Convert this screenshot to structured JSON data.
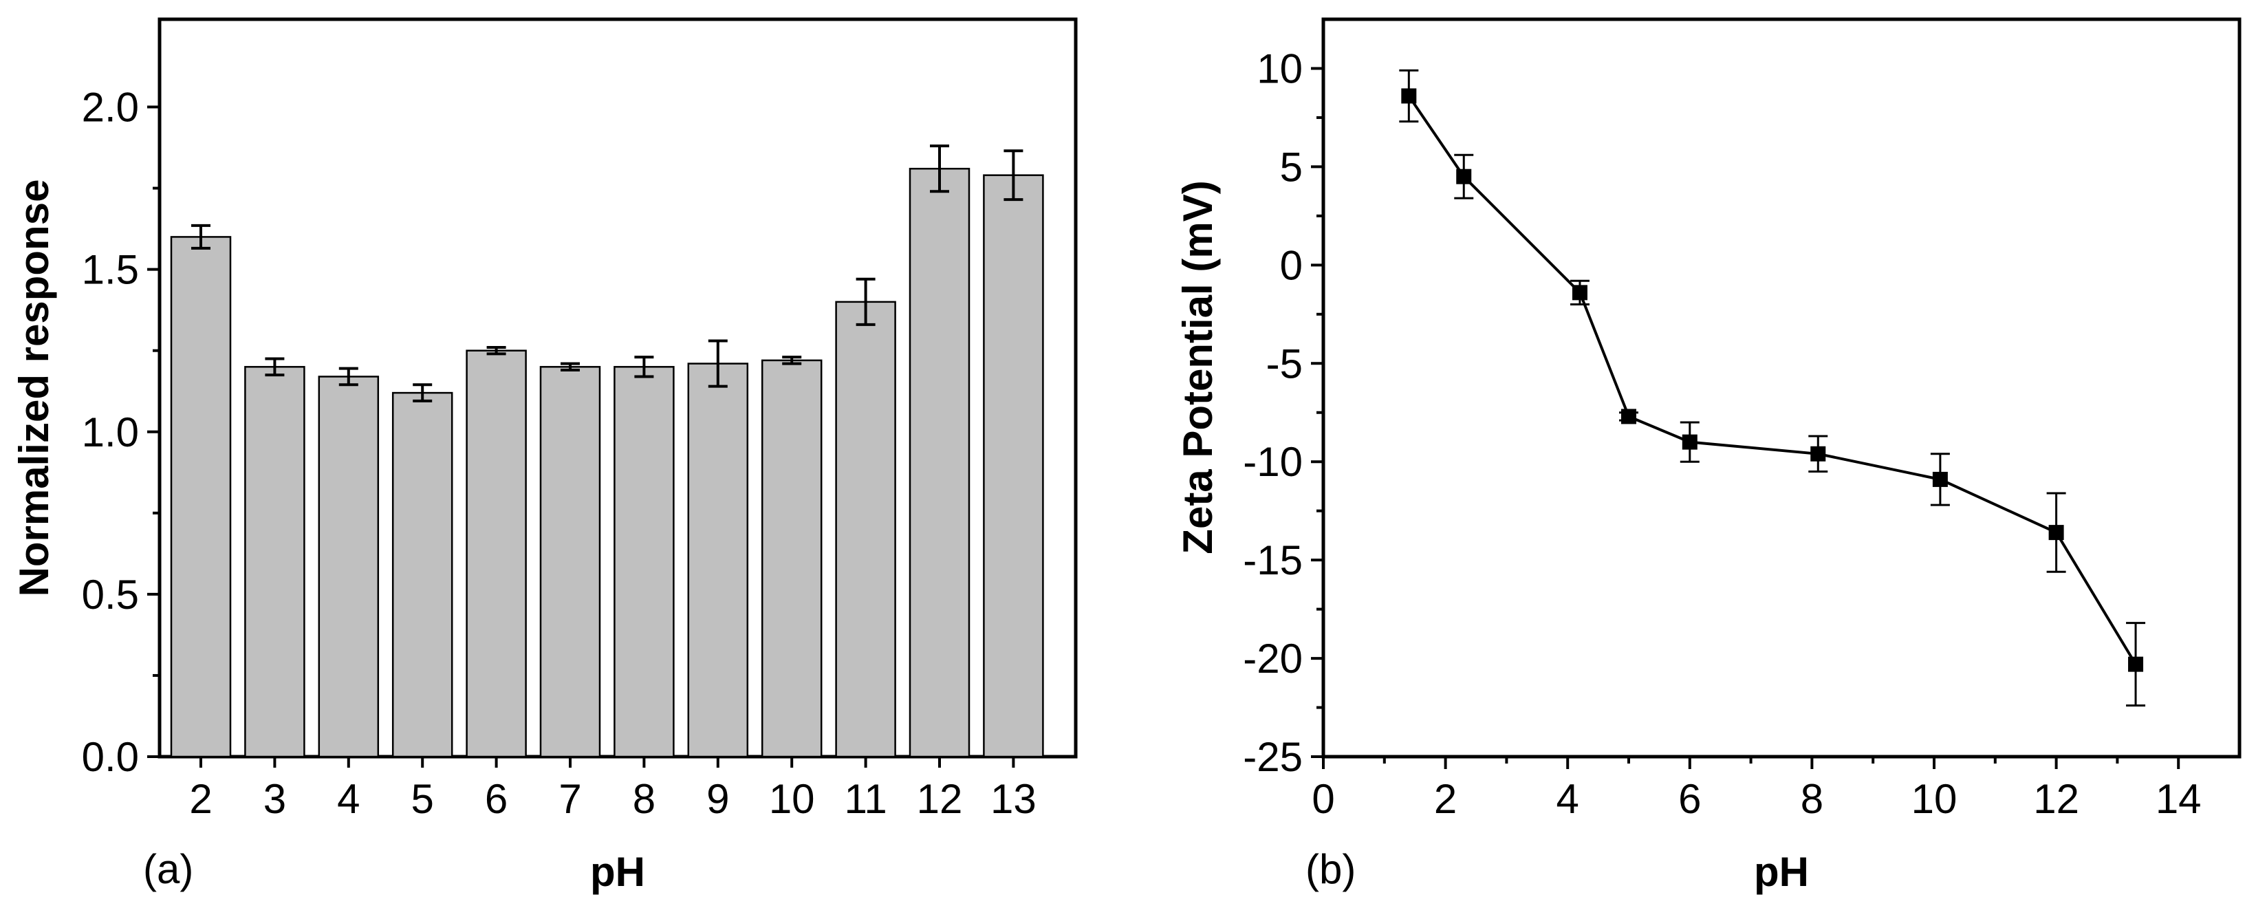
{
  "figure": {
    "panel_labels": [
      "(a)",
      "(b)"
    ]
  },
  "colors": {
    "bar_fill": "#c0c0c0",
    "stroke": "#000000",
    "background": "#ffffff"
  },
  "chart_data": [
    {
      "id": "a",
      "type": "bar",
      "title": "",
      "xlabel": "pH",
      "ylabel": "Normalized response",
      "categories": [
        "2",
        "3",
        "4",
        "5",
        "6",
        "7",
        "8",
        "9",
        "10",
        "11",
        "12",
        "13"
      ],
      "values": [
        1.6,
        1.2,
        1.17,
        1.12,
        1.25,
        1.2,
        1.2,
        1.21,
        1.22,
        1.4,
        1.81,
        1.79
      ],
      "errors": [
        0.035,
        0.025,
        0.025,
        0.025,
        0.01,
        0.01,
        0.03,
        0.07,
        0.01,
        0.07,
        0.07,
        0.075
      ],
      "ylim": [
        0.0,
        2.27
      ],
      "yticks": [
        0.0,
        0.5,
        1.0,
        1.5,
        2.0
      ],
      "ytick_labels": [
        "0.0",
        "0.5",
        "1.0",
        "1.5",
        "2.0"
      ],
      "grid": false
    },
    {
      "id": "b",
      "type": "line",
      "title": "",
      "xlabel": "pH",
      "ylabel": "Zeta Potential (mV)",
      "x": [
        1.4,
        2.3,
        4.2,
        5.0,
        6.0,
        8.1,
        10.1,
        12.0,
        13.3
      ],
      "y": [
        8.6,
        4.5,
        -1.4,
        -7.7,
        -9.0,
        -9.6,
        -10.9,
        -13.6,
        -20.3
      ],
      "errors": [
        1.3,
        1.1,
        0.6,
        0.2,
        1.0,
        0.9,
        1.3,
        2.0,
        2.1
      ],
      "xlim": [
        0,
        15
      ],
      "ylim": [
        -25,
        12.5
      ],
      "xticks": [
        0,
        2,
        4,
        6,
        8,
        10,
        12,
        14
      ],
      "xtick_labels": [
        "0",
        "2",
        "4",
        "6",
        "8",
        "10",
        "12",
        "14"
      ],
      "yticks": [
        10,
        5,
        0,
        -5,
        -10,
        -15,
        -20,
        -25
      ],
      "ytick_labels": [
        "10",
        "5",
        "0",
        "-5",
        "-10",
        "-15",
        "-20",
        "-25"
      ],
      "marker": "square",
      "grid": false
    }
  ]
}
